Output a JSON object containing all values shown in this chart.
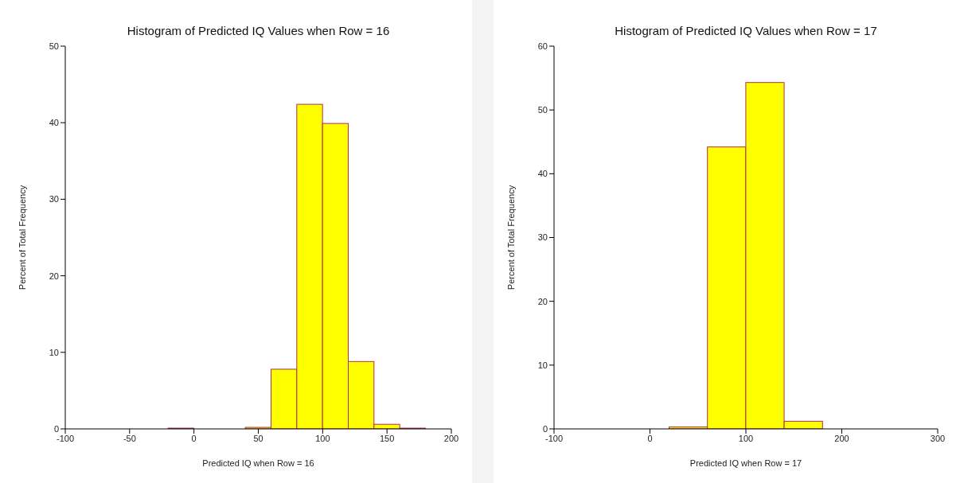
{
  "chart_data": [
    {
      "type": "histogram",
      "title": "Histogram of Predicted IQ Values when Row = 16",
      "xlabel": "Predicted IQ when Row = 16",
      "ylabel": "Percent of Total Frequency",
      "bins": [
        -20,
        0,
        20,
        40,
        60,
        80,
        100,
        120,
        140,
        160,
        180
      ],
      "values": [
        0.1,
        0,
        0,
        0.2,
        7.8,
        42.4,
        39.9,
        8.8,
        0.6,
        0.1
      ],
      "color": "#ffff00",
      "xlim": [
        -100,
        200
      ],
      "xticks": [
        -100,
        -50,
        0,
        50,
        100,
        150,
        200
      ],
      "ylim": [
        0,
        50
      ],
      "yticks": [
        0,
        10,
        20,
        30,
        40,
        50
      ]
    },
    {
      "type": "histogram",
      "title": "Histogram of Predicted IQ Values when Row = 17",
      "xlabel": "Predicted IQ when Row = 17",
      "ylabel": "Percent of Total Frequency",
      "bins": [
        20,
        60,
        100,
        140,
        180
      ],
      "values": [
        0.3,
        44.2,
        54.3,
        1.2
      ],
      "color": "#ffff00",
      "xlim": [
        -100,
        300
      ],
      "xticks": [
        -100,
        0,
        100,
        200,
        300
      ],
      "ylim": [
        0,
        60
      ],
      "yticks": [
        0,
        10,
        20,
        30,
        40,
        50,
        60
      ]
    }
  ]
}
